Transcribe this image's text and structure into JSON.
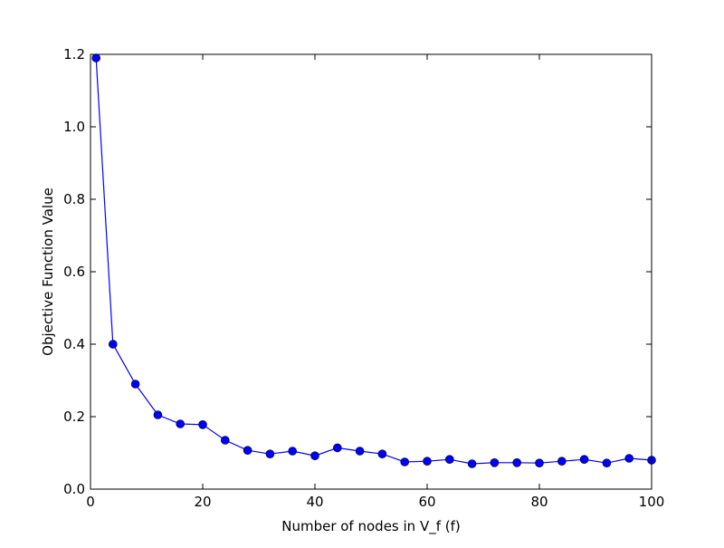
{
  "chart_data": {
    "type": "line",
    "title": "",
    "xlabel": "Number of nodes in V_f (f)",
    "ylabel": "Objective Function Value",
    "xlim": [
      0,
      100
    ],
    "ylim": [
      0.0,
      1.2
    ],
    "x_ticks": [
      0,
      20,
      40,
      60,
      80,
      100
    ],
    "x_tick_labels": [
      "0",
      "20",
      "40",
      "60",
      "80",
      "100"
    ],
    "y_ticks": [
      0.0,
      0.2,
      0.4,
      0.6,
      0.8,
      1.0,
      1.2
    ],
    "y_tick_labels": [
      "0.0",
      "0.2",
      "0.4",
      "0.6",
      "0.8",
      "1.0",
      "1.2"
    ],
    "grid": false,
    "legend": "none",
    "series": [
      {
        "color": "#0000ff",
        "marker": "circle",
        "x": [
          1,
          4,
          8,
          12,
          16,
          20,
          24,
          28,
          32,
          36,
          40,
          44,
          48,
          52,
          56,
          60,
          64,
          68,
          72,
          76,
          80,
          84,
          88,
          92,
          96,
          100
        ],
        "y": [
          1.19,
          0.4,
          0.29,
          0.205,
          0.18,
          0.178,
          0.135,
          0.107,
          0.097,
          0.105,
          0.092,
          0.114,
          0.105,
          0.097,
          0.075,
          0.077,
          0.082,
          0.07,
          0.073,
          0.073,
          0.072,
          0.077,
          0.082,
          0.072,
          0.085,
          0.08
        ]
      }
    ]
  }
}
